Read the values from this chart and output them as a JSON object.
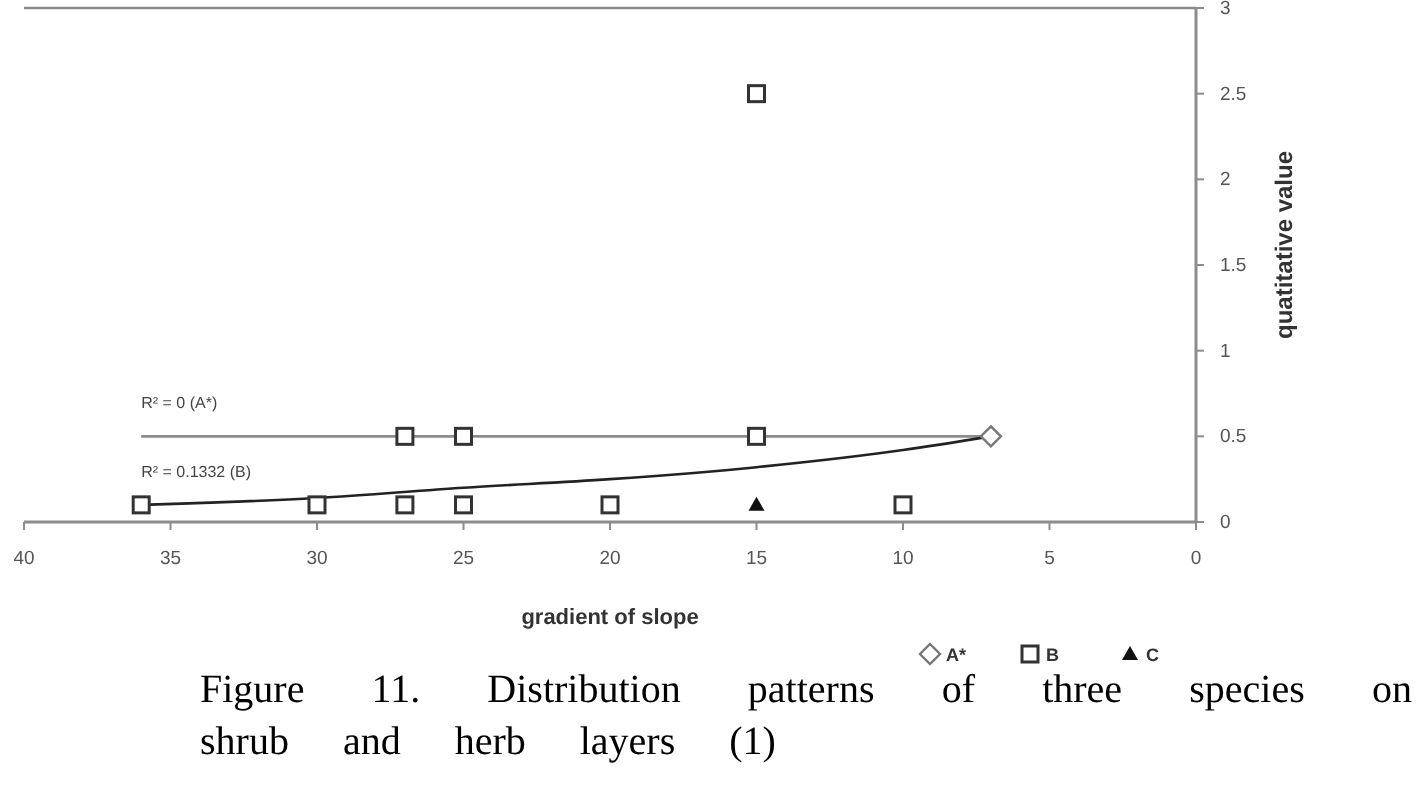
{
  "chart_data": {
    "type": "scatter",
    "title": "Figure 11.  Distribution patterns of three species on shrub and herb layers (1)",
    "xlabel": "gradient of slope",
    "ylabel": "quatitative value",
    "xlim": [
      40,
      0
    ],
    "xticks": [
      40,
      35,
      30,
      25,
      20,
      15,
      10,
      5,
      0
    ],
    "ylim": [
      0,
      3
    ],
    "yticks": [
      0,
      0.5,
      1,
      1.5,
      2,
      2.5,
      3
    ],
    "legend": "bottom right",
    "grid": false,
    "annotations": [
      "R² = 0 (A*)",
      "R² = 0.1332 (B)"
    ],
    "series": [
      {
        "type": "line",
        "color": "#8c8c8c",
        "marker": "none",
        "x": [
          36,
          7
        ],
        "values": [
          0.5,
          0.5
        ]
      },
      {
        "type": "line",
        "color": "#222222",
        "marker": "none",
        "x": [
          36,
          30,
          25,
          20,
          15,
          10,
          7
        ],
        "values": [
          0.1,
          0.14,
          0.2,
          0.25,
          0.32,
          0.42,
          0.5
        ]
      },
      {
        "name": "A*",
        "color": "#777777",
        "marker": "diamond",
        "x": [
          7
        ],
        "values": [
          0.5
        ]
      },
      {
        "name": "B",
        "color": "#333333",
        "marker": "square",
        "x": [
          15,
          27,
          25,
          15,
          36,
          30,
          27,
          25,
          20,
          10
        ],
        "values": [
          2.5,
          0.5,
          0.5,
          0.5,
          0.1,
          0.1,
          0.1,
          0.1,
          0.1,
          0.1
        ]
      },
      {
        "name": "C",
        "color": "#111111",
        "marker": "triangle",
        "x": [
          15
        ],
        "values": [
          0.1
        ]
      }
    ]
  }
}
